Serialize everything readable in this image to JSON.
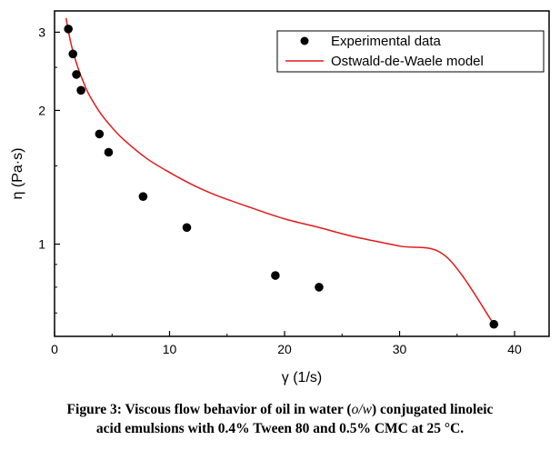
{
  "chart_data": {
    "type": "scatter",
    "x_label": "γ (1/s)",
    "y_label": "η (Pa·s)",
    "x_lim": [
      0,
      43
    ],
    "y_lim": [
      0.62,
      3.35
    ],
    "y_scale": "log",
    "x_ticks": [
      0,
      10,
      20,
      30,
      40
    ],
    "y_ticks": [
      1,
      2,
      3
    ],
    "legend_position": "top-right",
    "series": [
      {
        "name": "Experimental data",
        "kind": "markers",
        "color": "#000000",
        "x": [
          1.2,
          1.6,
          1.9,
          2.3,
          3.9,
          4.7,
          7.7,
          11.5,
          19.2,
          23.0,
          38.2
        ],
        "y": [
          3.05,
          2.68,
          2.41,
          2.22,
          1.77,
          1.61,
          1.28,
          1.09,
          0.85,
          0.8,
          0.66
        ]
      },
      {
        "name": "Ostwald-de-Waele model",
        "kind": "line",
        "color": "#e31a1c",
        "x": [
          1.0,
          1.2,
          1.5,
          2.0,
          2.5,
          3.0,
          4.0,
          5.0,
          6.0,
          8.0,
          10.0,
          12.0,
          14.0,
          17.0,
          20.0,
          23.0,
          26.0,
          30.0,
          34.0,
          38.2
        ],
        "y": [
          3.23,
          3.02,
          2.78,
          2.51,
          2.32,
          2.17,
          1.97,
          1.83,
          1.72,
          1.56,
          1.45,
          1.36,
          1.29,
          1.21,
          1.14,
          1.09,
          1.04,
          0.99,
          0.94,
          0.66
        ]
      }
    ]
  },
  "caption": {
    "line1_prefix": "Figure 3: Viscous flow behavior of oil in water (",
    "line1_math": "o/w",
    "line1_suffix": ") conjugated linoleic",
    "line2": "acid emulsions with 0.4% Tween 80 and 0.5% CMC at 25 °C."
  }
}
